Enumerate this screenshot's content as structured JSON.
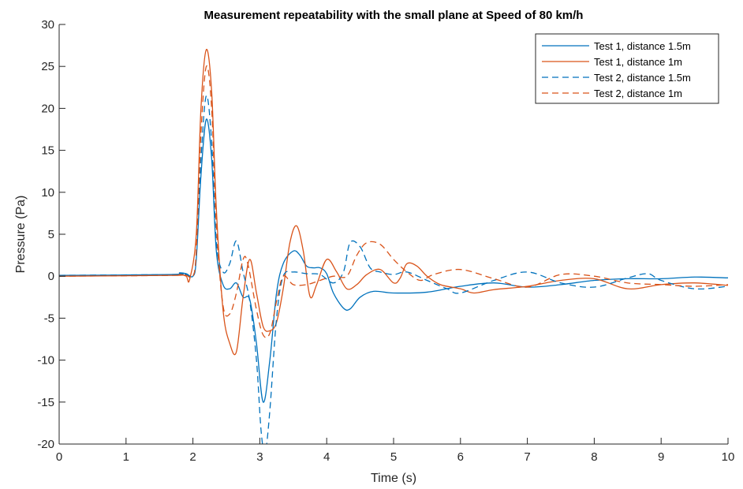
{
  "chart_data": {
    "type": "line",
    "title": "Measurement repeatability with the small plane at Speed of 80 km/h",
    "xlabel": "Time (s)",
    "ylabel": "Pressure (Pa)",
    "xlim": [
      0,
      10
    ],
    "ylim": [
      -20,
      30
    ],
    "xticks": [
      0,
      1,
      2,
      3,
      4,
      5,
      6,
      7,
      8,
      9,
      10
    ],
    "yticks": [
      -20,
      -15,
      -10,
      -5,
      0,
      5,
      10,
      15,
      20,
      25,
      30
    ],
    "xtick_labels": [
      "0",
      "1",
      "2",
      "3",
      "4",
      "5",
      "6",
      "7",
      "8",
      "9",
      "10"
    ],
    "ytick_labels": [
      "-20",
      "-15",
      "-10",
      "-5",
      "0",
      "5",
      "10",
      "15",
      "20",
      "25",
      "30"
    ],
    "grid": false,
    "legend_position": "top-right",
    "series": [
      {
        "name": "Test 1, distance 1.5m",
        "color": "#0072BD",
        "dash": "solid",
        "x": [
          0,
          1.7,
          1.8,
          1.9,
          2.0,
          2.05,
          2.12,
          2.2,
          2.28,
          2.35,
          2.45,
          2.55,
          2.65,
          2.75,
          2.85,
          2.95,
          3.05,
          3.15,
          3.25,
          3.35,
          3.5,
          3.6,
          3.7,
          3.8,
          3.9,
          4.0,
          4.1,
          4.25,
          4.35,
          4.5,
          4.7,
          5.0,
          5.5,
          6.0,
          6.5,
          7.0,
          7.5,
          8.0,
          8.5,
          9.0,
          9.5,
          10.0
        ],
        "y": [
          0.1,
          0.2,
          0.4,
          0.3,
          0,
          2.0,
          12.0,
          18.7,
          14.0,
          3.0,
          -1.0,
          -1.5,
          -0.8,
          -2.5,
          -2.8,
          -8.0,
          -15.0,
          -10.0,
          -2.0,
          1.5,
          3.0,
          2.5,
          1.2,
          1.0,
          1.0,
          0.3,
          -2.0,
          -3.8,
          -3.9,
          -2.5,
          -1.8,
          -2.0,
          -1.9,
          -1.2,
          -0.8,
          -1.3,
          -1.0,
          -0.5,
          -0.3,
          -0.3,
          -0.1,
          -0.2
        ]
      },
      {
        "name": "Test 1, distance 1m",
        "color": "#D95319",
        "dash": "solid",
        "x": [
          0,
          1.7,
          1.8,
          1.9,
          1.95,
          2.05,
          2.12,
          2.2,
          2.28,
          2.35,
          2.45,
          2.55,
          2.65,
          2.75,
          2.85,
          2.95,
          3.05,
          3.15,
          3.25,
          3.35,
          3.45,
          3.55,
          3.65,
          3.75,
          3.85,
          4.0,
          4.15,
          4.3,
          4.45,
          4.6,
          4.8,
          5.0,
          5.1,
          5.2,
          5.35,
          5.5,
          5.7,
          6.0,
          6.2,
          6.5,
          7.0,
          7.5,
          8.0,
          8.5,
          9.0,
          9.5,
          10.0
        ],
        "y": [
          0,
          0.1,
          0.2,
          0,
          -0.4,
          5.0,
          20.0,
          27.0,
          22.0,
          8.0,
          -4.0,
          -8.0,
          -9.0,
          -2.5,
          2.0,
          -2.0,
          -6.0,
          -6.5,
          -5.5,
          -1.5,
          4.0,
          6.0,
          3.0,
          -2.4,
          -1.0,
          2.0,
          0.5,
          -1.5,
          -1.0,
          0.2,
          0.8,
          -0.8,
          -0.2,
          1.5,
          1.2,
          0,
          -1.0,
          -1.5,
          -2.0,
          -1.6,
          -1.2,
          -0.5,
          -0.3,
          -1.5,
          -1.0,
          -0.8,
          -1.1
        ]
      },
      {
        "name": "Test 2, distance 1.5m",
        "color": "#0072BD",
        "dash": "dashed",
        "x": [
          0,
          1.7,
          1.8,
          1.9,
          2.0,
          2.05,
          2.12,
          2.2,
          2.28,
          2.35,
          2.45,
          2.55,
          2.65,
          2.75,
          2.85,
          2.95,
          3.02,
          3.08,
          3.15,
          3.25,
          3.35,
          3.5,
          3.7,
          3.9,
          4.1,
          4.25,
          4.35,
          4.5,
          4.65,
          4.8,
          5.0,
          5.2,
          5.5,
          5.8,
          6.0,
          6.5,
          7.0,
          7.5,
          8.0,
          8.5,
          8.8,
          9.0,
          9.5,
          10.0
        ],
        "y": [
          0.1,
          0.2,
          0.3,
          0.2,
          0,
          2.5,
          14.0,
          21.5,
          16.0,
          4.0,
          0.5,
          1.5,
          4.2,
          0.5,
          -3.0,
          -10.0,
          -18.5,
          -21.0,
          -16.0,
          -5.0,
          0,
          0.5,
          0.3,
          0.2,
          -0.8,
          0.5,
          4.0,
          3.5,
          1.0,
          0.5,
          0.2,
          0.5,
          -0.5,
          -1.5,
          -2.0,
          -0.5,
          0.5,
          -0.8,
          -1.3,
          -0.2,
          0.3,
          -0.5,
          -1.5,
          -1.2
        ]
      },
      {
        "name": "Test 2, distance 1m",
        "color": "#D95319",
        "dash": "dashed",
        "x": [
          0,
          1.7,
          1.8,
          1.9,
          2.0,
          2.05,
          2.12,
          2.2,
          2.28,
          2.35,
          2.45,
          2.55,
          2.65,
          2.75,
          2.82,
          2.95,
          3.05,
          3.15,
          3.25,
          3.35,
          3.5,
          3.7,
          3.9,
          4.1,
          4.3,
          4.45,
          4.6,
          4.8,
          5.0,
          5.2,
          5.4,
          5.6,
          6.0,
          6.5,
          7.0,
          7.5,
          8.0,
          8.5,
          9.0,
          9.5,
          10.0
        ],
        "y": [
          0,
          0.1,
          0.2,
          0.1,
          0,
          3.0,
          17.0,
          25.0,
          20.0,
          6.0,
          -3.5,
          -4.5,
          -2.0,
          2.0,
          1.5,
          -4.0,
          -7.0,
          -6.8,
          -3.0,
          0,
          -1.0,
          -1.0,
          -0.5,
          0,
          0,
          2.5,
          4.0,
          3.8,
          2.0,
          0.5,
          -0.5,
          0.2,
          0.8,
          -0.3,
          -1.3,
          0.2,
          0,
          -0.8,
          -1.0,
          -1.2,
          -1.0
        ]
      }
    ]
  }
}
